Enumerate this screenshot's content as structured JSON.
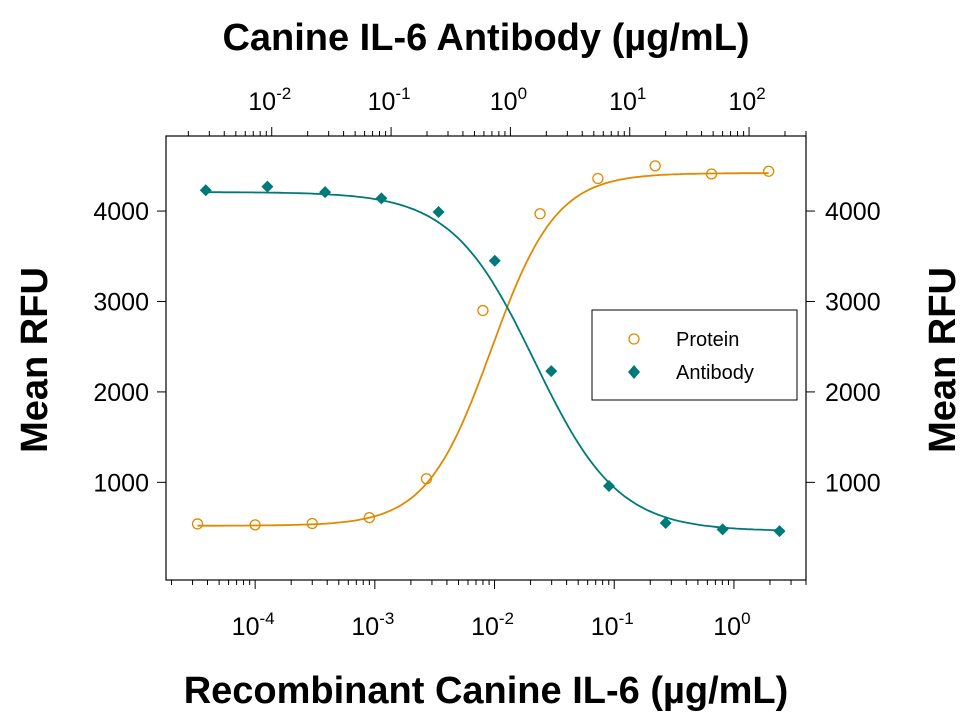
{
  "chart_data": {
    "type": "scatter",
    "title": "",
    "top_axis": {
      "label": "Canine IL-6 Antibody (µg/mL)",
      "scale": "log",
      "tick_exponents": [
        -2,
        -1,
        0,
        1,
        2
      ]
    },
    "bottom_axis": {
      "label": "Recombinant Canine IL-6 (µg/mL)",
      "scale": "log",
      "tick_exponents": [
        -4,
        -3,
        -2,
        -1,
        0
      ]
    },
    "left_axis": {
      "label": "Mean RFU",
      "ticks": [
        "1000",
        "2000",
        "3000",
        "4000"
      ],
      "tick_values": [
        1000,
        2000,
        3000,
        4000
      ]
    },
    "right_axis": {
      "label": "Mean RFU",
      "ticks": [
        "1000",
        "2000",
        "3000",
        "4000"
      ],
      "tick_values": [
        1000,
        2000,
        3000,
        4000
      ]
    },
    "ylim": [
      -80,
      4830
    ],
    "xlim_bottom": [
      1.8e-05,
      4.0
    ],
    "xlim_top": [
      0.0013,
      300
    ],
    "grid": false,
    "legend_position": "right-middle",
    "legend": [
      {
        "name": "Protein",
        "marker": "open-circle",
        "color": "#E08A00"
      },
      {
        "name": "Antibody",
        "marker": "filled-diamond",
        "color": "#007A78"
      }
    ],
    "series": [
      {
        "name": "Protein",
        "axis": "bottom",
        "marker": "open-circle",
        "color": "#E08A00",
        "x": [
          3.3e-05,
          0.0001,
          0.0003,
          0.0009,
          0.0027,
          0.008,
          0.024,
          0.073,
          0.22,
          0.65,
          1.95
        ],
        "y": [
          540,
          530,
          545,
          610,
          1040,
          2900,
          3970,
          4360,
          4500,
          4410,
          4440
        ],
        "fit": {
          "bottom": 520,
          "top": 4420,
          "ec50": 0.0094,
          "hill": 1.6
        }
      },
      {
        "name": "Antibody",
        "axis": "top",
        "marker": "filled-diamond",
        "color": "#007A78",
        "x": [
          0.0028,
          0.0092,
          0.028,
          0.083,
          0.25,
          0.74,
          2.2,
          6.7,
          20,
          60,
          180
        ],
        "y": [
          4230,
          4270,
          4210,
          4140,
          3990,
          3450,
          2230,
          960,
          550,
          480,
          460
        ],
        "fit": {
          "bottom": 460,
          "top": 4210,
          "ec50": 1.6,
          "hill": 1.25
        }
      }
    ]
  }
}
